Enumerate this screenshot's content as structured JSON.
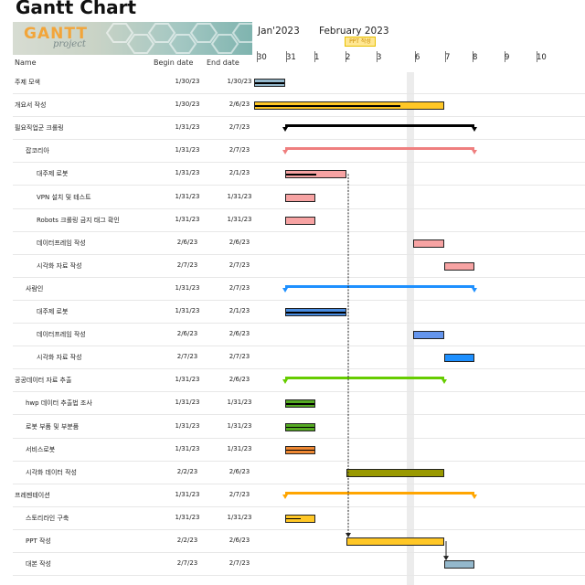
{
  "page": {
    "title": "Gantt Chart"
  },
  "logo": {
    "main": "GANTT",
    "sub": "project"
  },
  "columns": {
    "name": "Name",
    "begin": "Begin date",
    "end": "End date"
  },
  "timeline": {
    "month_labels": [
      "Jan'2023",
      "February 2023"
    ],
    "today_marker": "PPT 작성",
    "day_labels": [
      "30",
      "31",
      "1",
      "2",
      "3",
      "6",
      "7",
      "8",
      "9",
      "10"
    ],
    "day_x": [
      284,
      316,
      347,
      381,
      415,
      457,
      490,
      520,
      555,
      590
    ]
  },
  "chart_data": {
    "type": "gantt",
    "title": "Gantt Chart",
    "time_axis": [
      "2023-01-30",
      "2023-01-31",
      "2023-02-01",
      "2023-02-02",
      "2023-02-03",
      "2023-02-06",
      "2023-02-07",
      "2023-02-08",
      "2023-02-09",
      "2023-02-10"
    ],
    "tasks": [
      {
        "name": "주제 모색",
        "begin": "1/30/23",
        "end": "1/30/23",
        "level": 0,
        "summary": false,
        "color": "#94b8cc",
        "progress": 1.0
      },
      {
        "name": "개요서 작성",
        "begin": "1/30/23",
        "end": "2/6/23",
        "level": 0,
        "summary": false,
        "color": "#ffc726",
        "progress": 0.77
      },
      {
        "name": "필요직업군 크롤링",
        "begin": "1/31/23",
        "end": "2/7/23",
        "level": 0,
        "summary": true,
        "color": "#000000"
      },
      {
        "name": "잡코리아",
        "begin": "1/31/23",
        "end": "2/7/23",
        "level": 1,
        "summary": true,
        "color": "#ef7f7f"
      },
      {
        "name": "대주제 로봇",
        "begin": "1/31/23",
        "end": "2/1/23",
        "level": 2,
        "summary": false,
        "color": "#f7a3a3",
        "progress": 0.5
      },
      {
        "name": "VPN 설치 및 테스트",
        "begin": "1/31/23",
        "end": "1/31/23",
        "level": 2,
        "summary": false,
        "color": "#f7a3a3",
        "progress": 0
      },
      {
        "name": "Robots 크롤링 금지 태그 확인",
        "begin": "1/31/23",
        "end": "1/31/23",
        "level": 2,
        "summary": false,
        "color": "#f7a3a3",
        "progress": 0
      },
      {
        "name": "데이터프레임 작성",
        "begin": "2/6/23",
        "end": "2/6/23",
        "level": 2,
        "summary": false,
        "color": "#f7a3a3",
        "progress": 0
      },
      {
        "name": "시각화 자료 작성",
        "begin": "2/7/23",
        "end": "2/7/23",
        "level": 2,
        "summary": false,
        "color": "#f7a3a3",
        "progress": 0
      },
      {
        "name": "사람인",
        "begin": "1/31/23",
        "end": "2/7/23",
        "level": 1,
        "summary": true,
        "color": "#1e90ff"
      },
      {
        "name": "대주제 로봇",
        "begin": "1/31/23",
        "end": "2/1/23",
        "level": 2,
        "summary": false,
        "color": "#4a8de0",
        "progress": 1.0
      },
      {
        "name": "데이터프레임 작성",
        "begin": "2/6/23",
        "end": "2/6/23",
        "level": 2,
        "summary": false,
        "color": "#6495ed",
        "progress": 0
      },
      {
        "name": "시각화 자료 작성",
        "begin": "2/7/23",
        "end": "2/7/23",
        "level": 2,
        "summary": false,
        "color": "#1e90ff",
        "progress": 0
      },
      {
        "name": "공공데이터 자료 추출",
        "begin": "1/31/23",
        "end": "2/6/23",
        "level": 0,
        "summary": true,
        "color": "#66cc00"
      },
      {
        "name": "hwp 데이터 추출법 조사",
        "begin": "1/31/23",
        "end": "1/31/23",
        "level": 1,
        "summary": false,
        "color": "#55aa22",
        "progress": 1.0
      },
      {
        "name": "로봇 부품 및 부분품",
        "begin": "1/31/23",
        "end": "1/31/23",
        "level": 1,
        "summary": false,
        "color": "#55aa22",
        "progress": 1.0
      },
      {
        "name": "서비스로봇",
        "begin": "1/31/23",
        "end": "1/31/23",
        "level": 1,
        "summary": false,
        "color": "#ee8833",
        "progress": 1.0
      },
      {
        "name": "시각화 데이터 작성",
        "begin": "2/2/23",
        "end": "2/6/23",
        "level": 1,
        "summary": false,
        "color": "#999900",
        "progress": 0
      },
      {
        "name": "프레젠테이션",
        "begin": "1/31/23",
        "end": "2/7/23",
        "level": 0,
        "summary": true,
        "color": "#ffa500"
      },
      {
        "name": "스토리라인 구축",
        "begin": "1/31/23",
        "end": "1/31/23",
        "level": 1,
        "summary": false,
        "color": "#ffc726",
        "progress": 0.5
      },
      {
        "name": "PPT 작성",
        "begin": "2/2/23",
        "end": "2/6/23",
        "level": 1,
        "summary": false,
        "color": "#ffc726",
        "progress": 0
      },
      {
        "name": "대본 작성",
        "begin": "2/7/23",
        "end": "2/7/23",
        "level": 1,
        "summary": false,
        "color": "#94b8cc",
        "progress": 0
      }
    ],
    "dependencies": [
      [
        "대주제 로봇",
        "PPT 작성"
      ],
      [
        "PPT 작성",
        "대본 작성"
      ]
    ]
  }
}
